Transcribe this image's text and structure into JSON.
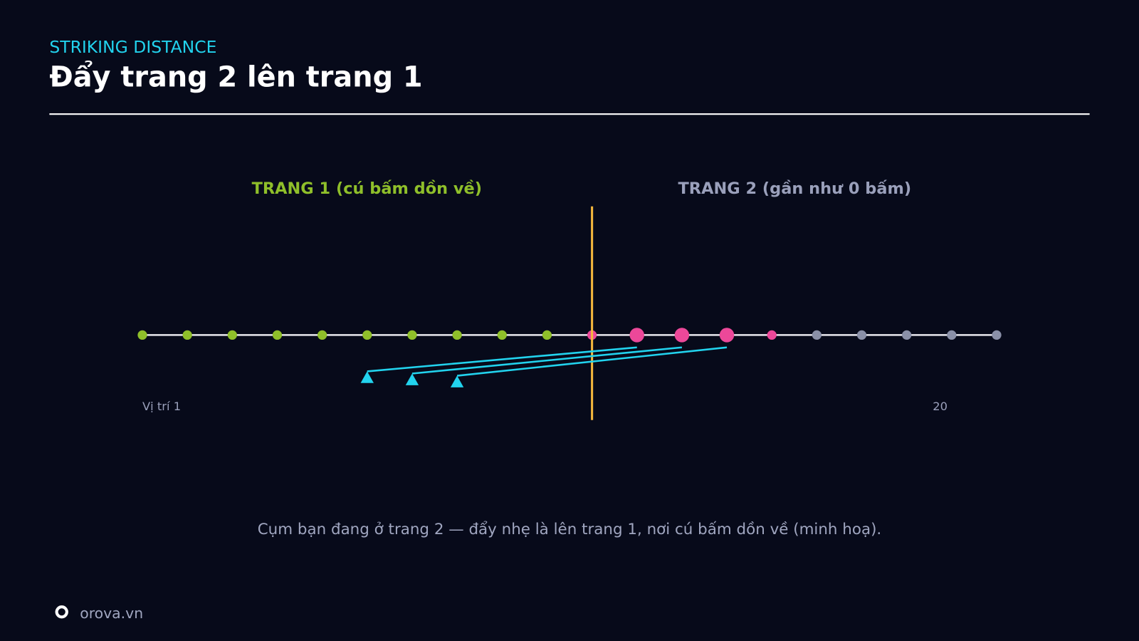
{
  "header": {
    "kicker": "STRIKING DISTANCE",
    "title": "Đẩy trang 2 lên trang 1"
  },
  "diagram": {
    "page1_label": "TRANG 1 (cú bấm dồn về)",
    "page2_label": "TRANG 2 (gần như 0 bấm)",
    "start_label": "Vị trí 1",
    "end_label": "20"
  },
  "caption": "Cụm bạn đang ở trang 2 — đẩy nhẹ là lên trang 1, nơi cú bấm dồn về (minh hoạ).",
  "footer": {
    "brand": "orova.vn"
  }
}
